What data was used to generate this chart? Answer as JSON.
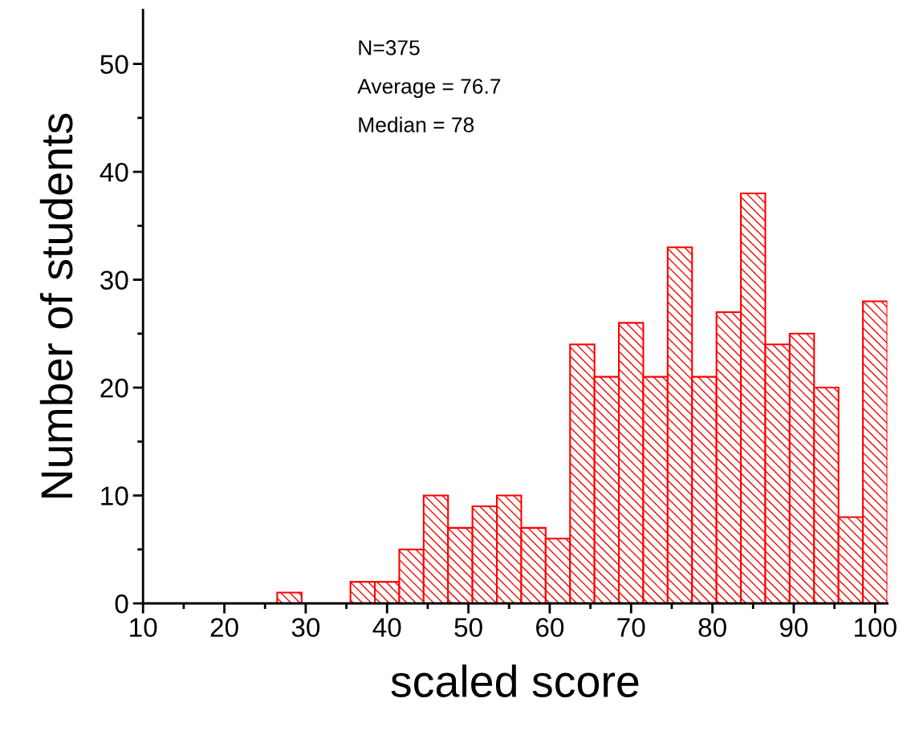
{
  "chart_data": {
    "type": "histogram",
    "xlabel": "scaled score",
    "ylabel": "Number of students",
    "bins": [
      26.5,
      29.5,
      32.5,
      35.5,
      38.5,
      41.5,
      44.5,
      47.5,
      50.5,
      53.5,
      56.5,
      59.5,
      62.5,
      65.5,
      68.5,
      71.5,
      74.5,
      77.5,
      80.5,
      83.5,
      86.5,
      89.5,
      92.5,
      95.5,
      98.5,
      101.5
    ],
    "values": [
      1,
      0,
      0,
      2,
      2,
      5,
      10,
      7,
      9,
      10,
      7,
      6,
      24,
      21,
      26,
      21,
      33,
      21,
      27,
      38,
      24,
      25,
      20,
      8,
      28
    ],
    "color": "#ff0000",
    "xlim": [
      10,
      101.5
    ],
    "ylim": [
      0,
      55
    ],
    "xticks": [
      10,
      {
        "value": 15,
        "label": null
      },
      20,
      {
        "value": 25,
        "label": null
      },
      30,
      {
        "value": 35,
        "label": null
      },
      40,
      {
        "value": 45,
        "label": null
      },
      50,
      {
        "value": 55,
        "label": null
      },
      60,
      {
        "value": 65,
        "label": null
      },
      70,
      {
        "value": 75,
        "label": null
      },
      80,
      {
        "value": 85,
        "label": null
      },
      90,
      {
        "value": 95,
        "label": null
      },
      100
    ],
    "yticks": [
      0,
      {
        "value": 5,
        "label": null
      },
      10,
      {
        "value": 15,
        "label": null
      },
      20,
      {
        "value": 25,
        "label": null
      },
      30,
      {
        "value": 35,
        "label": null
      },
      40,
      {
        "value": 45,
        "label": null
      },
      50
    ],
    "annotations": [
      "N=375",
      "Average = 76.7",
      "Median = 78"
    ],
    "grid": false,
    "legend": false
  }
}
